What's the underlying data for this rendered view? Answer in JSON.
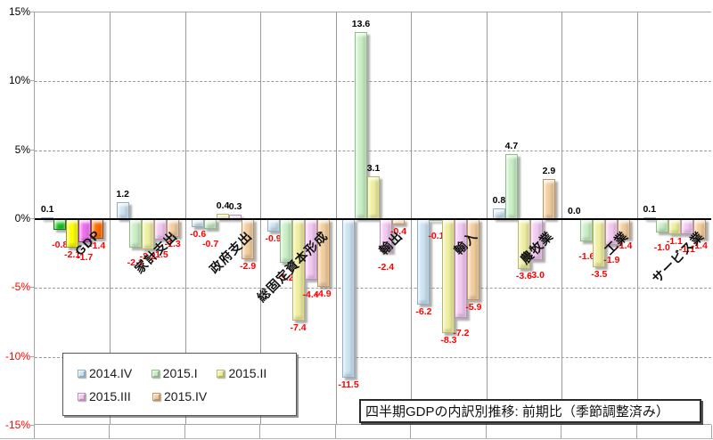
{
  "title": "四半期GDPの内訳別推移: 前期比（季節調整済み）",
  "y_axis": {
    "tick_labels": [
      "15%",
      "10%",
      "5%",
      "0%",
      "-5%",
      "-10%",
      "-15%"
    ],
    "tick_values": [
      15,
      10,
      5,
      0,
      -5,
      -10,
      -15
    ],
    "positive_label_color": "#000000",
    "negative_label_color": "#ff0000"
  },
  "legend": {
    "rows": [
      [
        "2014.IV",
        "2015.I",
        "2015.II"
      ],
      [
        "2015.III",
        "2015.IV"
      ]
    ]
  },
  "chart_data": {
    "type": "bar",
    "title": "四半期GDPの内訳別推移: 前期比（季節調整済み）",
    "categories": [
      "GDP",
      "家計支出",
      "政府支出",
      "総固定資本形成",
      "輸出",
      "輸入",
      "農牧業",
      "工業",
      "サービス業"
    ],
    "series": [
      {
        "name": "2014.IV",
        "values": [
          0.1,
          1.2,
          -0.6,
          -0.9,
          -11.5,
          -6.2,
          0.8,
          0.0,
          0.1
        ]
      },
      {
        "name": "2015.I",
        "values": [
          -0.8,
          -2.1,
          -0.7,
          -3.2,
          13.6,
          -0.1,
          4.7,
          -1.6,
          -1.0
        ]
      },
      {
        "name": "2015.II",
        "values": [
          -2.1,
          -2.2,
          0.4,
          -7.4,
          3.1,
          -8.3,
          -3.6,
          -3.5,
          -1.1
        ]
      },
      {
        "name": "2015.III",
        "values": [
          -1.7,
          -1.5,
          0.3,
          -4.4,
          -2.4,
          -7.2,
          -3.0,
          -1.9,
          -1.1
        ]
      },
      {
        "name": "2015.IV",
        "values": [
          -1.4,
          -1.3,
          -2.9,
          -4.9,
          -0.4,
          -5.9,
          2.9,
          -1.4,
          -1.4
        ]
      }
    ],
    "ylim": [
      -15,
      15
    ],
    "y_step": 5,
    "grid": "horizontal dashed every 5%, vertical solid category separators",
    "legend_position": "bottom-left box",
    "highlight_category": "GDP",
    "value_labels": "one decimal, negative in red, positive in black"
  },
  "colors": {
    "series": {
      "2014.IV": {
        "fill": "#CCE3F2",
        "edge": "#8FAEC6"
      },
      "2015.I": {
        "fill": "#C9EFC5",
        "edge": "#8CBE86"
      },
      "2015.II": {
        "fill": "#EFEF9F",
        "edge": "#B9B964"
      },
      "2015.III": {
        "fill": "#F3C8F1",
        "edge": "#C389C0"
      },
      "2015.IV": {
        "fill": "#F2CD9D",
        "edge": "#C79256"
      }
    },
    "highlight_series": {
      "2014.IV": {
        "fill": "#CCE3F2",
        "edge": "#8FAEC6"
      },
      "2015.I": {
        "fill": "#1EC81E",
        "edge": "#0E7C0E"
      },
      "2015.II": {
        "fill": "#FFFF00",
        "edge": "#9C9C00"
      },
      "2015.III": {
        "fill": "#EF6FEF",
        "edge": "#A332A3"
      },
      "2015.IV": {
        "fill": "#FF6E00",
        "edge": "#A34700"
      }
    },
    "negative_value_label": "#ff0000",
    "positive_value_label": "#000000",
    "gridline": "#9a9a9a",
    "zero_line": "#000000"
  }
}
